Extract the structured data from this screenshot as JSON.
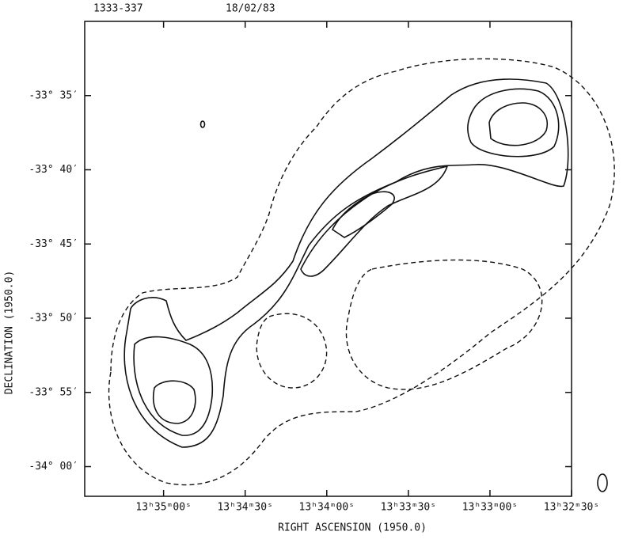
{
  "chart_data": {
    "type": "contour",
    "header": [
      "1333-337",
      "18/02/83"
    ],
    "xlabel": "RIGHT ASCENSION (1950.0)",
    "ylabel": "DECLINATION (1950.0)",
    "xlim": [
      2129,
      1950
    ],
    "xticks": [
      {
        "value": 2100,
        "label": "13ʰ35ᵐ00ˢ"
      },
      {
        "value": 2070,
        "label": "13ʰ34ᵐ30ˢ"
      },
      {
        "value": 2040,
        "label": "13ʰ34ᵐ00ˢ"
      },
      {
        "value": 2010,
        "label": "13ʰ33ᵐ30ˢ"
      },
      {
        "value": 1980,
        "label": "13ʰ33ᵐ00ˢ"
      },
      {
        "value": 1950,
        "label": "13ʰ32ᵐ30ˢ"
      }
    ],
    "ylim": [
      -2042,
      -2010
    ],
    "yticks": [
      {
        "value": -2015,
        "label": "-33° 35′"
      },
      {
        "value": -2020,
        "label": "-33° 40′"
      },
      {
        "value": -2025,
        "label": "-33° 45′"
      },
      {
        "value": -2030,
        "label": "-33° 50′"
      },
      {
        "value": -2035,
        "label": "-33° 55′"
      },
      {
        "value": -2040,
        "label": "-34° 00′"
      }
    ]
  }
}
